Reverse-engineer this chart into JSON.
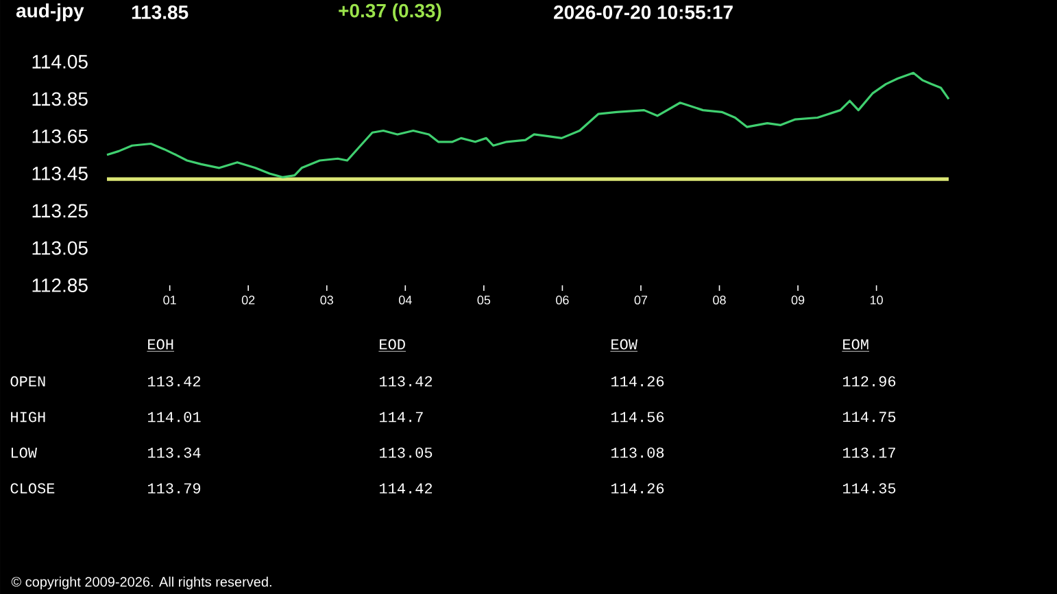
{
  "chart_data": [
    {
      "type": "line",
      "title": "aud-jpy",
      "annotations": [
        "113.85",
        "+0.37  (0.33)",
        "2026-07-20   10:55:17"
      ],
      "x": [
        0.2,
        0.35,
        0.52,
        0.76,
        0.93,
        1.08,
        1.22,
        1.4,
        1.63,
        1.86,
        2.09,
        2.27,
        2.44,
        2.59,
        2.68,
        2.91,
        3.14,
        3.26,
        3.43,
        3.58,
        3.72,
        3.9,
        4.1,
        4.3,
        4.42,
        4.6,
        4.71,
        4.89,
        5.03,
        5.12,
        5.29,
        5.53,
        5.64,
        5.82,
        5.99,
        6.22,
        6.46,
        6.69,
        7.04,
        7.21,
        7.5,
        7.79,
        8.03,
        8.2,
        8.35,
        8.61,
        8.78,
        8.96,
        9.25,
        9.54,
        9.66,
        9.77,
        9.95,
        10.12,
        10.27,
        10.47,
        10.59,
        10.7,
        10.82,
        10.92
      ],
      "values": [
        113.55,
        113.57,
        113.6,
        113.61,
        113.58,
        113.55,
        113.52,
        113.5,
        113.48,
        113.51,
        113.48,
        113.45,
        113.43,
        113.44,
        113.48,
        113.52,
        113.53,
        113.52,
        113.6,
        113.67,
        113.68,
        113.66,
        113.68,
        113.66,
        113.62,
        113.62,
        113.64,
        113.62,
        113.64,
        113.6,
        113.62,
        113.63,
        113.66,
        113.65,
        113.64,
        113.68,
        113.77,
        113.78,
        113.79,
        113.76,
        113.83,
        113.79,
        113.78,
        113.75,
        113.7,
        113.72,
        113.71,
        113.74,
        113.75,
        113.79,
        113.84,
        113.79,
        113.88,
        113.93,
        113.96,
        113.99,
        113.95,
        113.93,
        113.91,
        113.85
      ],
      "color": "#40d070",
      "ref_lines": [
        {
          "axis": "y",
          "value": 113.42,
          "color": "#dce775"
        }
      ],
      "xlim": [
        0.2,
        10.92
      ],
      "ylim": [
        112.85,
        114.05
      ],
      "xticks": [
        {
          "value": 1,
          "label": "01"
        },
        {
          "value": 2,
          "label": "02"
        },
        {
          "value": 3,
          "label": "03"
        },
        {
          "value": 4,
          "label": "04"
        },
        {
          "value": 5,
          "label": "05"
        },
        {
          "value": 6,
          "label": "06"
        },
        {
          "value": 7,
          "label": "07"
        },
        {
          "value": 8,
          "label": "08"
        },
        {
          "value": 9,
          "label": "09"
        },
        {
          "value": 10,
          "label": "10"
        }
      ],
      "yticks": [
        112.85,
        113.05,
        113.25,
        113.45,
        113.65,
        113.85,
        114.05
      ]
    },
    {
      "type": "other",
      "categories": [
        "EOH",
        "EOD",
        "EOW",
        "EOM"
      ],
      "y_categories": [
        "OPEN",
        "HIGH",
        "LOW",
        "CLOSE"
      ],
      "cell_labels": [
        [
          "113.42",
          "113.42",
          "114.26",
          "112.96"
        ],
        [
          "114.01",
          "114.7",
          "114.56",
          "114.75"
        ],
        [
          "113.34",
          "113.05",
          "113.08",
          "113.17"
        ],
        [
          "113.79",
          "114.42",
          "114.26",
          "114.35"
        ]
      ],
      "annotations": [
        "© copyright 2009-2026. All rights reserved."
      ]
    }
  ]
}
